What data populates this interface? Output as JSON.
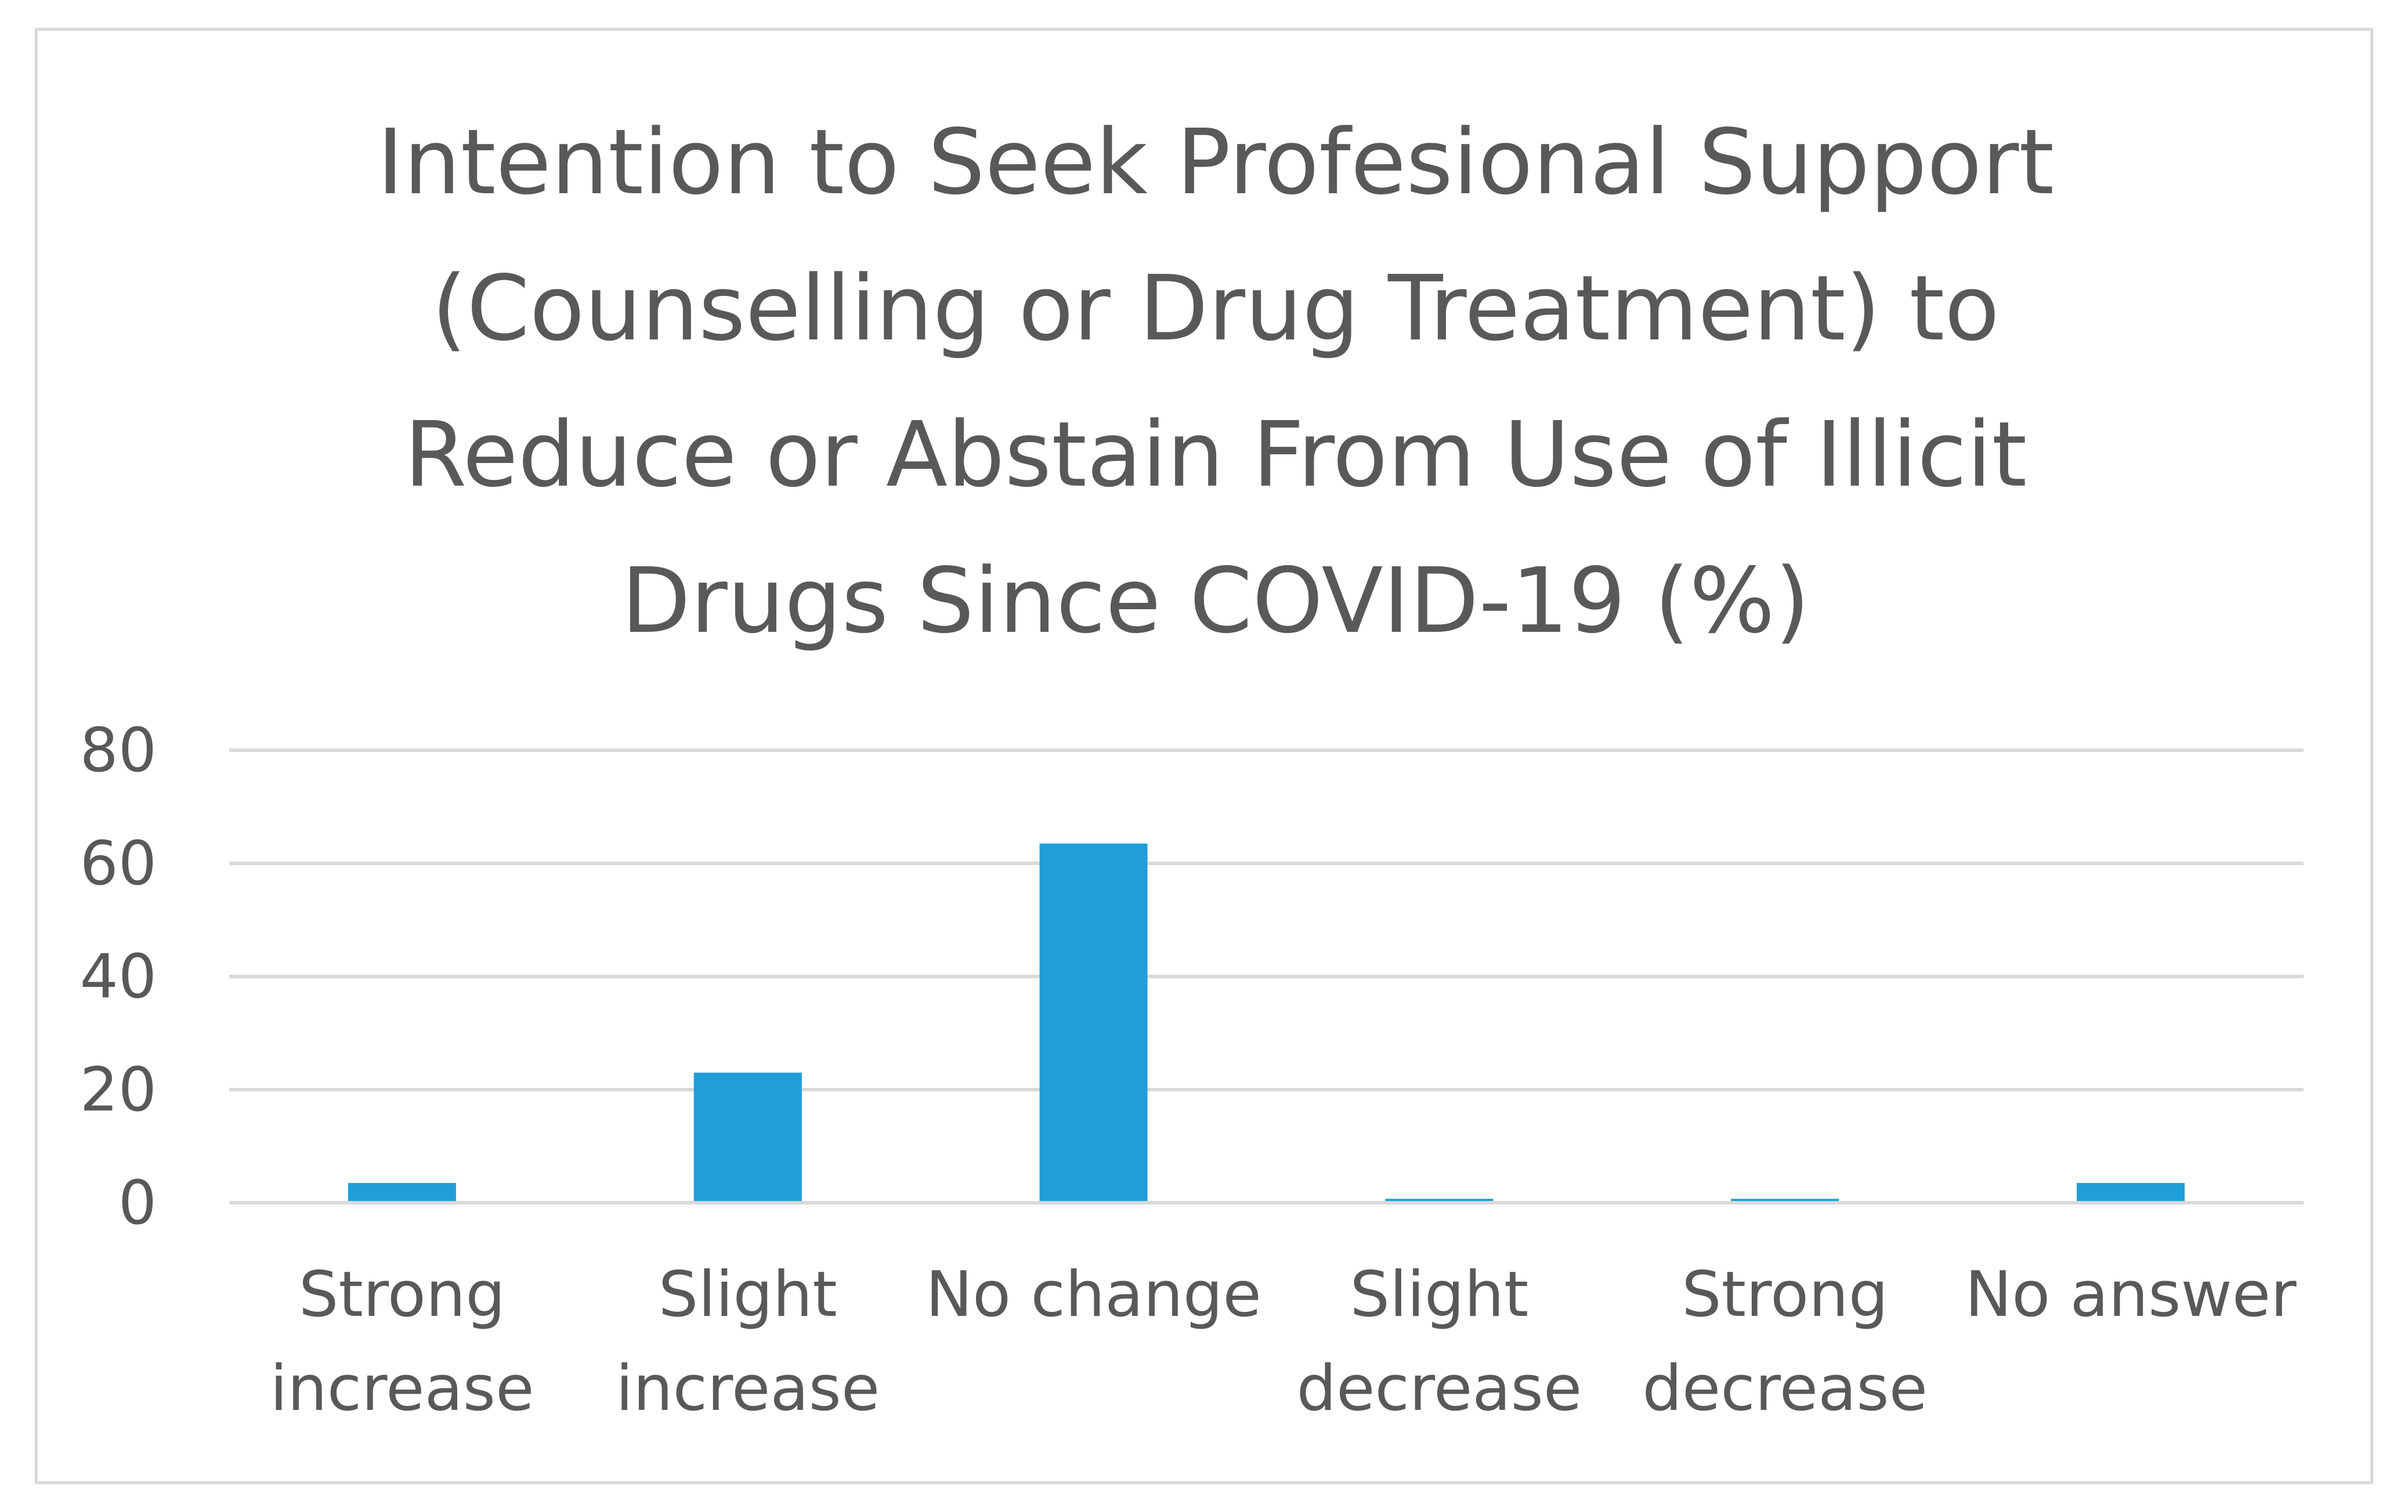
{
  "chart_data": {
    "type": "bar",
    "title_lines": [
      "Intention to Seek Profesional Support",
      "(Counselling or Drug Treatment) to",
      "Reduce or Abstain From Use of Illicit",
      "Drugs Since COVID-19 (%)"
    ],
    "categories": [
      [
        "Strong",
        "increase"
      ],
      [
        "Slight",
        "increase"
      ],
      [
        "No change"
      ],
      [
        "Slight",
        "decrease"
      ],
      [
        "Strong",
        "decrease"
      ],
      [
        "No answer"
      ]
    ],
    "values": [
      3.5,
      23,
      63.5,
      0.7,
      0.7,
      3.5
    ],
    "yticks": [
      "0",
      "20",
      "40",
      "60",
      "80"
    ],
    "ylim": [
      0,
      80
    ],
    "xlabel": "",
    "ylabel": "",
    "grid": true,
    "bar_color": "#1f9ed9"
  }
}
